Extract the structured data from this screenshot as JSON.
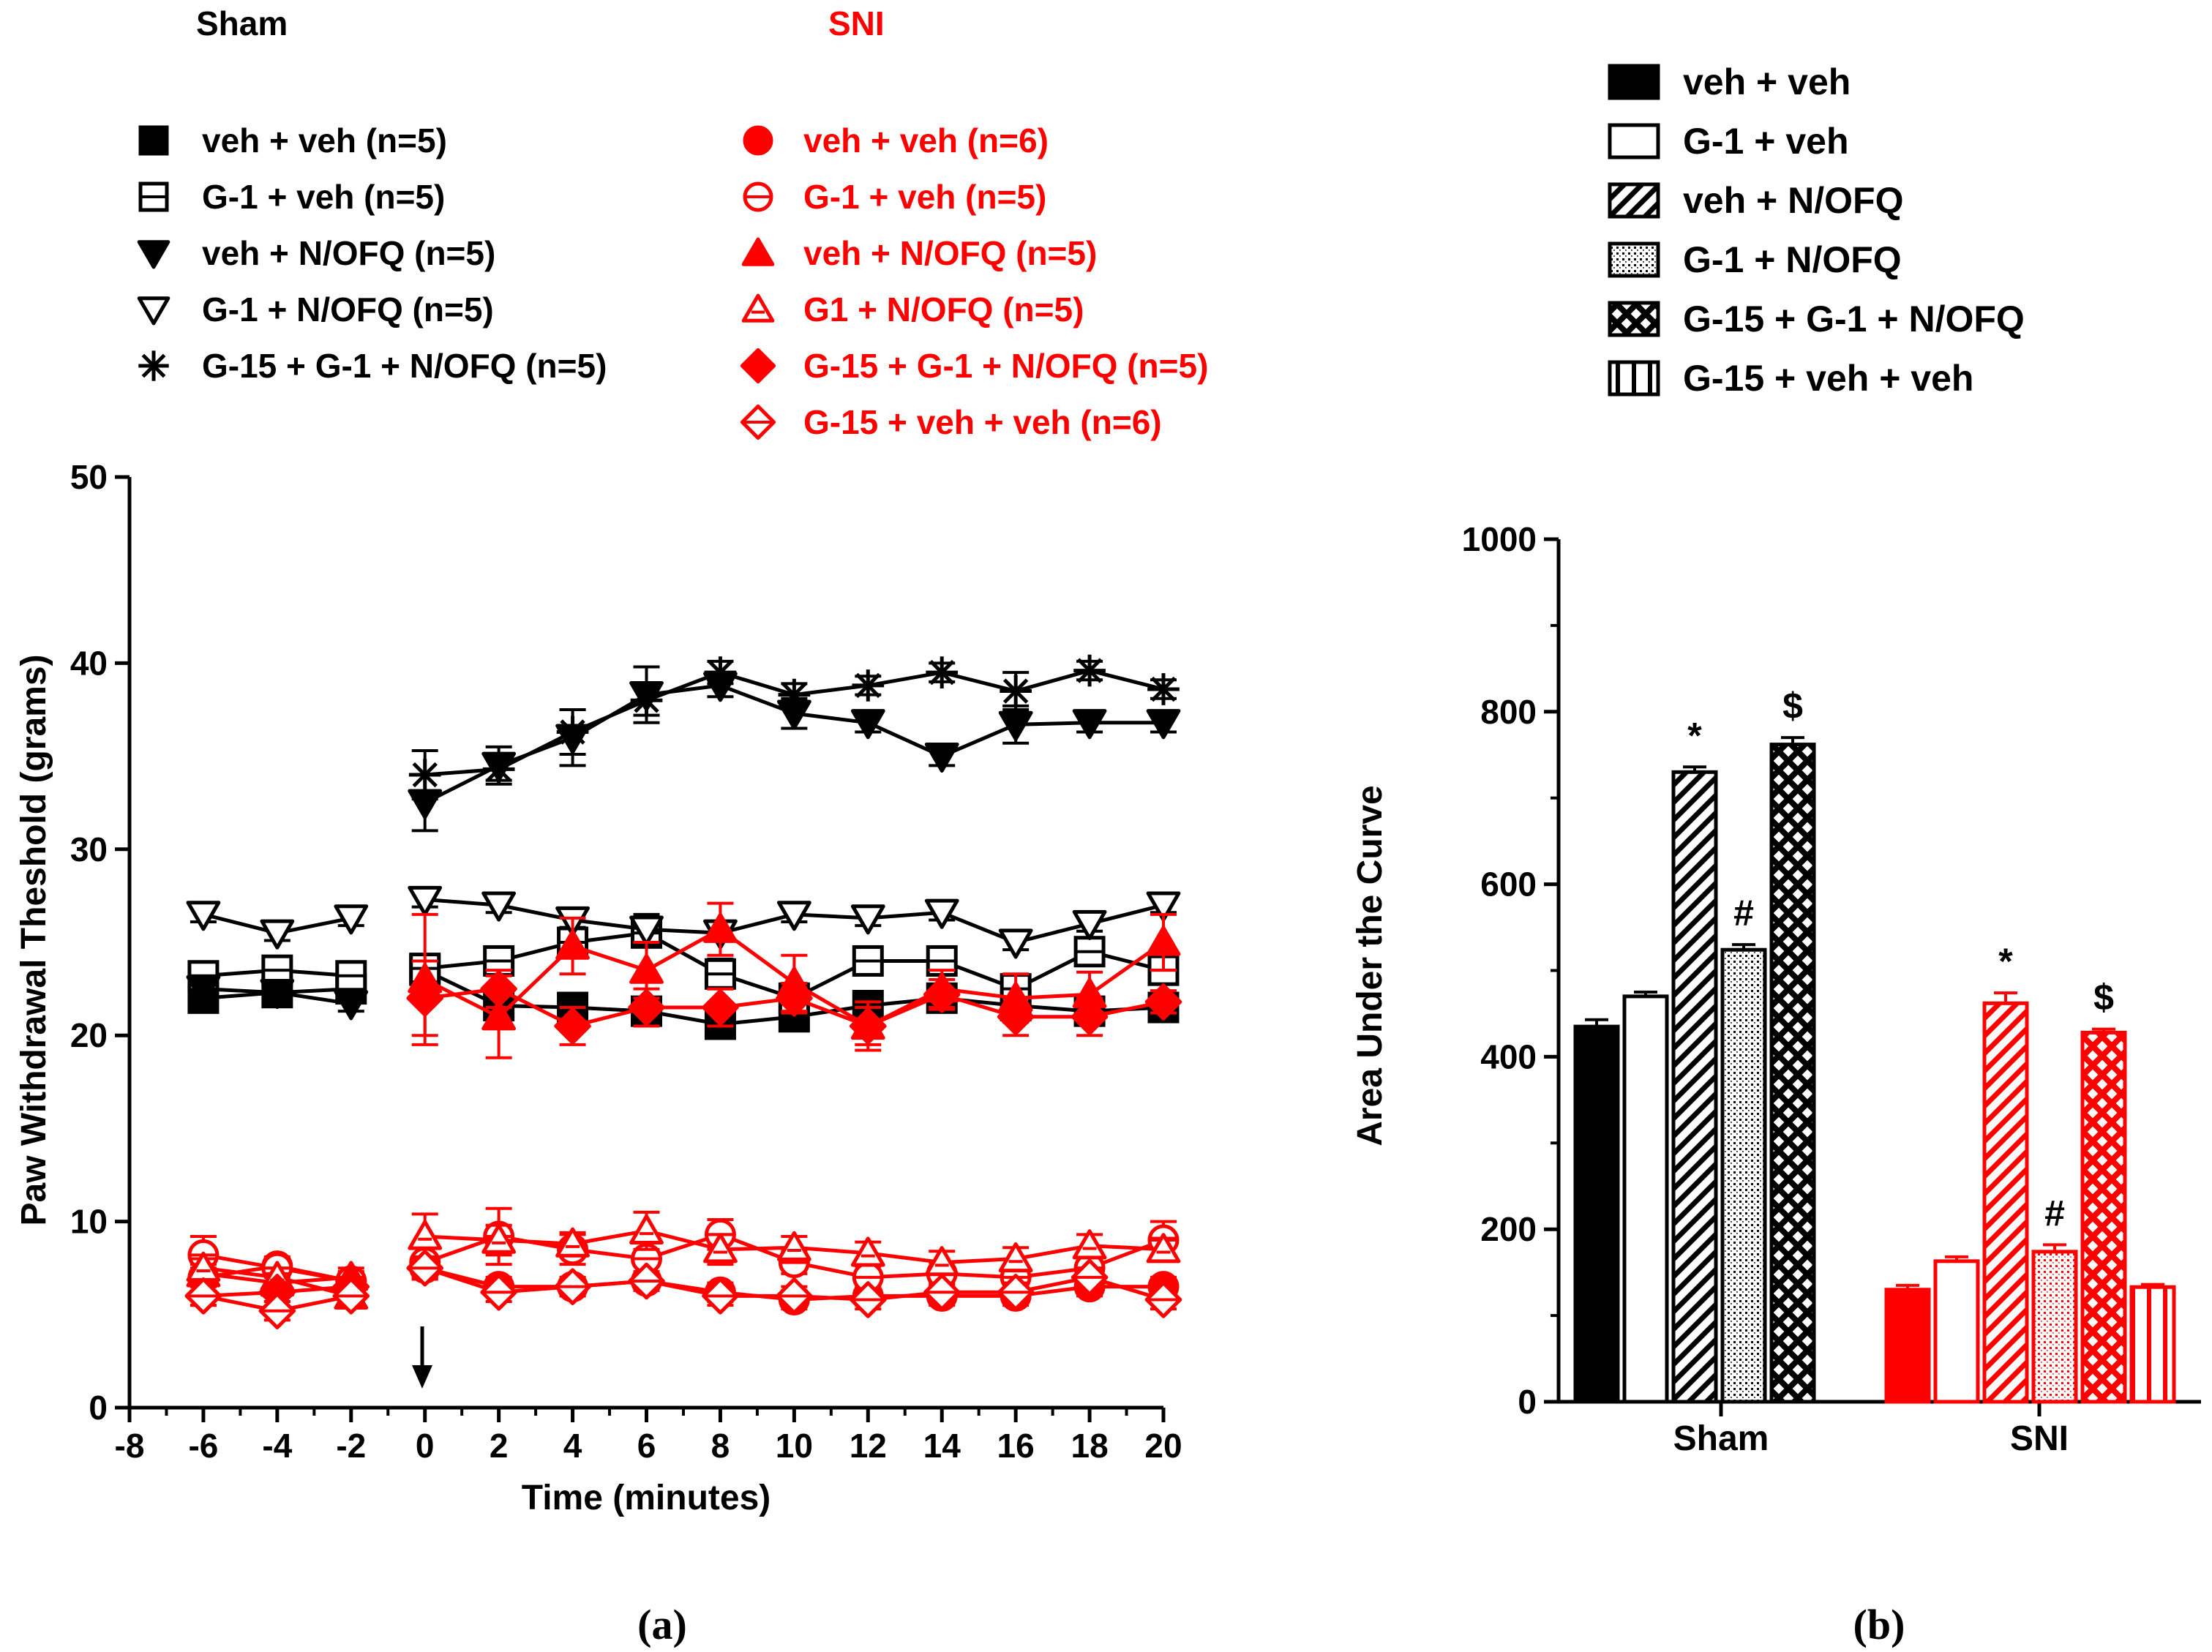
{
  "colors": {
    "sham": "#000000",
    "sni": "#ff0000"
  },
  "legend_a": {
    "sham_title": "Sham",
    "sni_title": "SNI",
    "sham": [
      {
        "label": "veh + veh (n=5)",
        "marker": "square",
        "filled": true
      },
      {
        "label": "G-1 + veh (n=5)",
        "marker": "square",
        "filled": false
      },
      {
        "label": "veh + N/OFQ (n=5)",
        "marker": "triangle-down",
        "filled": true
      },
      {
        "label": "G-1 + N/OFQ (n=5)",
        "marker": "triangle-down",
        "filled": false
      },
      {
        "label": "G-15 + G-1 + N/OFQ (n=5)",
        "marker": "asterisk",
        "filled": true
      }
    ],
    "sni": [
      {
        "label": "veh + veh (n=6)",
        "marker": "circle",
        "filled": true
      },
      {
        "label": "G-1 + veh (n=5)",
        "marker": "circle",
        "filled": false
      },
      {
        "label": "veh + N/OFQ (n=5)",
        "marker": "triangle-up",
        "filled": true
      },
      {
        "label": "G1 + N/OFQ (n=5)",
        "marker": "triangle-up",
        "filled": false
      },
      {
        "label": "G-15 + G-1 + N/OFQ (n=5)",
        "marker": "diamond",
        "filled": true
      },
      {
        "label": "G-15 + veh + veh (n=6)",
        "marker": "diamond",
        "filled": false
      }
    ]
  },
  "legend_b": [
    {
      "label": "veh + veh",
      "pattern": "solid"
    },
    {
      "label": "G-1 + veh",
      "pattern": "open"
    },
    {
      "label": "veh + N/OFQ",
      "pattern": "diagonal"
    },
    {
      "label": "G-1 + N/OFQ",
      "pattern": "dots"
    },
    {
      "label": "G-15 + G-1 + N/OFQ",
      "pattern": "crosshatch"
    },
    {
      "label": "G-15 + veh + veh",
      "pattern": "vertical"
    }
  ],
  "panel_labels": {
    "a": "(a)",
    "b": "(b)"
  },
  "chart_data": [
    {
      "type": "line",
      "xlabel": "Time (minutes)",
      "ylabel": "Paw Withdrawal Theshold (grams)",
      "xlim": [
        -8,
        20
      ],
      "ylim": [
        0,
        50
      ],
      "xticks": [
        -8,
        -6,
        -4,
        -2,
        0,
        2,
        4,
        6,
        8,
        10,
        12,
        14,
        16,
        18,
        20
      ],
      "yticks": [
        0,
        10,
        20,
        30,
        40,
        50
      ],
      "annotation": "injection arrow at time 0",
      "pre_x": [
        -6,
        -4,
        -2
      ],
      "post_x": [
        0,
        2,
        4,
        6,
        8,
        10,
        12,
        14,
        16,
        18,
        20
      ],
      "series": [
        {
          "name": "Sham veh + veh (n=5)",
          "group": "sham",
          "marker": "square",
          "filled": true,
          "pre": [
            22.0,
            22.3,
            22.5
          ],
          "post": [
            23.5,
            21.6,
            21.5,
            21.3,
            20.6,
            21.0,
            21.6,
            22.0,
            21.6,
            21.3,
            21.5
          ],
          "err": [
            0.6,
            0.4,
            0.4,
            0.6,
            0.6,
            0.6,
            0.6,
            0.6,
            0.6,
            0.5,
            0.7,
            0.6,
            0.5,
            0.6
          ]
        },
        {
          "name": "Sham G-1 + veh (n=5)",
          "group": "sham",
          "marker": "square",
          "filled": false,
          "pre": [
            23.2,
            23.5,
            23.2
          ],
          "post": [
            23.6,
            24.0,
            25.0,
            25.5,
            23.3,
            22.0,
            24.0,
            24.0,
            22.5,
            24.5,
            23.5
          ],
          "err": [
            0.5,
            0.5,
            0.4,
            0.5,
            0.5,
            0.6,
            0.6,
            0.8,
            0.6,
            0.6,
            0.6,
            0.5,
            0.6,
            0.6
          ]
        },
        {
          "name": "Sham veh + N/OFQ (n=5)",
          "group": "sham",
          "marker": "triangle-down",
          "filled": true,
          "pre": [
            22.5,
            22.3,
            21.7
          ],
          "post": [
            32.5,
            34.5,
            36.0,
            38.3,
            38.8,
            37.3,
            36.8,
            35.0,
            36.7,
            36.8,
            36.8
          ],
          "err": [
            0.5,
            0.4,
            0.4,
            1.5,
            1.0,
            1.5,
            1.5,
            0.6,
            0.8,
            0.5,
            0.5,
            1.0,
            0.5,
            0.5
          ]
        },
        {
          "name": "Sham G-1 + N/OFQ (n=5)",
          "group": "sham",
          "marker": "triangle-down",
          "filled": false,
          "pre": [
            26.5,
            25.5,
            26.3
          ],
          "post": [
            27.3,
            27.0,
            26.2,
            25.7,
            25.5,
            26.5,
            26.3,
            26.6,
            25.0,
            26.0,
            27.0
          ],
          "err": [
            0.4,
            0.4,
            0.4,
            0.4,
            0.4,
            0.4,
            0.8,
            0.4,
            0.4,
            0.4,
            0.4,
            0.4,
            0.4,
            0.4
          ]
        },
        {
          "name": "Sham G-15 + G-1 + N/OFQ (n=5)",
          "group": "sham",
          "marker": "asterisk",
          "filled": true,
          "pre": null,
          "post": [
            34.0,
            34.3,
            36.3,
            38.0,
            39.5,
            38.3,
            38.8,
            39.5,
            38.5,
            39.6,
            38.6
          ],
          "err": [
            null,
            null,
            null,
            1.3,
            0.6,
            1.2,
            0.8,
            0.6,
            0.6,
            0.5,
            0.5,
            1.0,
            0.5,
            0.5
          ]
        },
        {
          "name": "SNI veh + veh (n=6)",
          "group": "sni",
          "marker": "circle",
          "filled": true,
          "pre": [
            7.0,
            7.6,
            6.8
          ],
          "post": [
            7.5,
            6.5,
            6.5,
            6.8,
            6.2,
            5.8,
            6.0,
            6.0,
            6.0,
            6.5,
            6.5
          ],
          "err": [
            0.5,
            0.5,
            0.5,
            0.6,
            0.5,
            0.5,
            0.5,
            0.5,
            0.5,
            0.5,
            0.5,
            0.5,
            0.5,
            0.5
          ]
        },
        {
          "name": "SNI G-1 + veh (n=5)",
          "group": "sni",
          "marker": "circle",
          "filled": false,
          "pre": [
            8.2,
            7.5,
            6.8
          ],
          "post": [
            7.8,
            9.2,
            8.5,
            8.0,
            9.3,
            7.8,
            7.0,
            7.2,
            7.0,
            7.5,
            9.0
          ],
          "err": [
            1.0,
            0.5,
            0.5,
            0.8,
            1.5,
            0.8,
            1.0,
            0.8,
            0.6,
            0.6,
            0.6,
            0.6,
            0.6,
            1.0
          ]
        },
        {
          "name": "SNI veh + N/OFQ (n=5)",
          "group": "sni",
          "marker": "triangle-up",
          "filled": true,
          "pre": [
            7.2,
            6.7,
            7.0
          ],
          "post": [
            23.0,
            21.0,
            24.8,
            23.5,
            25.7,
            22.8,
            20.5,
            22.5,
            22.0,
            22.2,
            25.0
          ],
          "err": [
            0.5,
            0.5,
            0.5,
            3.5,
            2.2,
            1.5,
            1.5,
            1.4,
            1.5,
            1.3,
            1.0,
            1.3,
            1.2,
            1.5
          ]
        },
        {
          "name": "SNI G1 + N/OFQ (n=5)",
          "group": "sni",
          "marker": "triangle-up",
          "filled": false,
          "pre": [
            7.5,
            7.0,
            6.0
          ],
          "post": [
            9.2,
            9.0,
            8.8,
            9.5,
            8.5,
            8.6,
            8.3,
            7.8,
            8.0,
            8.7,
            8.5
          ],
          "err": [
            0.5,
            0.5,
            0.6,
            1.2,
            0.8,
            0.6,
            1.0,
            0.8,
            0.6,
            0.6,
            0.6,
            0.6,
            0.6,
            0.6
          ]
        },
        {
          "name": "SNI G-15 + G-1 + N/OFQ (n=5)",
          "group": "sni",
          "marker": "diamond",
          "filled": true,
          "pre": [
            6.0,
            6.2,
            6.5
          ],
          "post": [
            22.0,
            22.5,
            20.5,
            21.5,
            21.5,
            22.0,
            20.5,
            22.2,
            21.0,
            21.0,
            21.8
          ],
          "err": [
            0.5,
            0.5,
            0.5,
            2.0,
            1.0,
            1.0,
            1.0,
            1.0,
            0.8,
            1.0,
            0.8,
            1.0,
            1.0,
            0.6
          ]
        },
        {
          "name": "SNI G-15 + veh + veh (n=6)",
          "group": "sni",
          "marker": "diamond",
          "filled": false,
          "pre": [
            6.0,
            5.2,
            6.0
          ],
          "post": [
            7.5,
            6.2,
            6.5,
            6.8,
            6.0,
            6.0,
            5.8,
            6.2,
            6.2,
            7.0,
            5.8
          ],
          "err": [
            0.5,
            0.5,
            0.5,
            0.6,
            0.5,
            0.5,
            0.5,
            0.5,
            0.5,
            0.5,
            0.5,
            0.5,
            0.5,
            0.5
          ]
        }
      ]
    },
    {
      "type": "bar",
      "ylabel": "Area Under the Curve",
      "ylim": [
        0,
        1000
      ],
      "yticks": [
        0,
        200,
        400,
        600,
        800,
        1000
      ],
      "categories": [
        "Sham",
        "SNI"
      ],
      "series": [
        {
          "name": "veh + veh",
          "pattern": "solid",
          "values": [
            435,
            130
          ],
          "errors": [
            8,
            5
          ],
          "annotations": [
            "",
            ""
          ]
        },
        {
          "name": "G-1 + veh",
          "pattern": "open",
          "values": [
            470,
            163
          ],
          "errors": [
            5,
            5
          ],
          "annotations": [
            "",
            ""
          ]
        },
        {
          "name": "veh + N/OFQ",
          "pattern": "diagonal",
          "values": [
            730,
            462
          ],
          "errors": [
            6,
            12
          ],
          "annotations": [
            "*",
            "*"
          ]
        },
        {
          "name": "G-1 + N/OFQ",
          "pattern": "dots",
          "values": [
            524,
            174
          ],
          "errors": [
            6,
            8
          ],
          "annotations": [
            "#",
            "#"
          ]
        },
        {
          "name": "G-15 + G-1 + N/OFQ",
          "pattern": "crosshatch",
          "values": [
            762,
            428
          ],
          "errors": [
            8,
            4
          ],
          "annotations": [
            "$",
            "$"
          ]
        },
        {
          "name": "G-15 + veh + veh",
          "pattern": "vertical",
          "values": [
            null,
            133
          ],
          "errors": [
            null,
            3
          ],
          "annotations": [
            "",
            ""
          ]
        }
      ]
    }
  ]
}
